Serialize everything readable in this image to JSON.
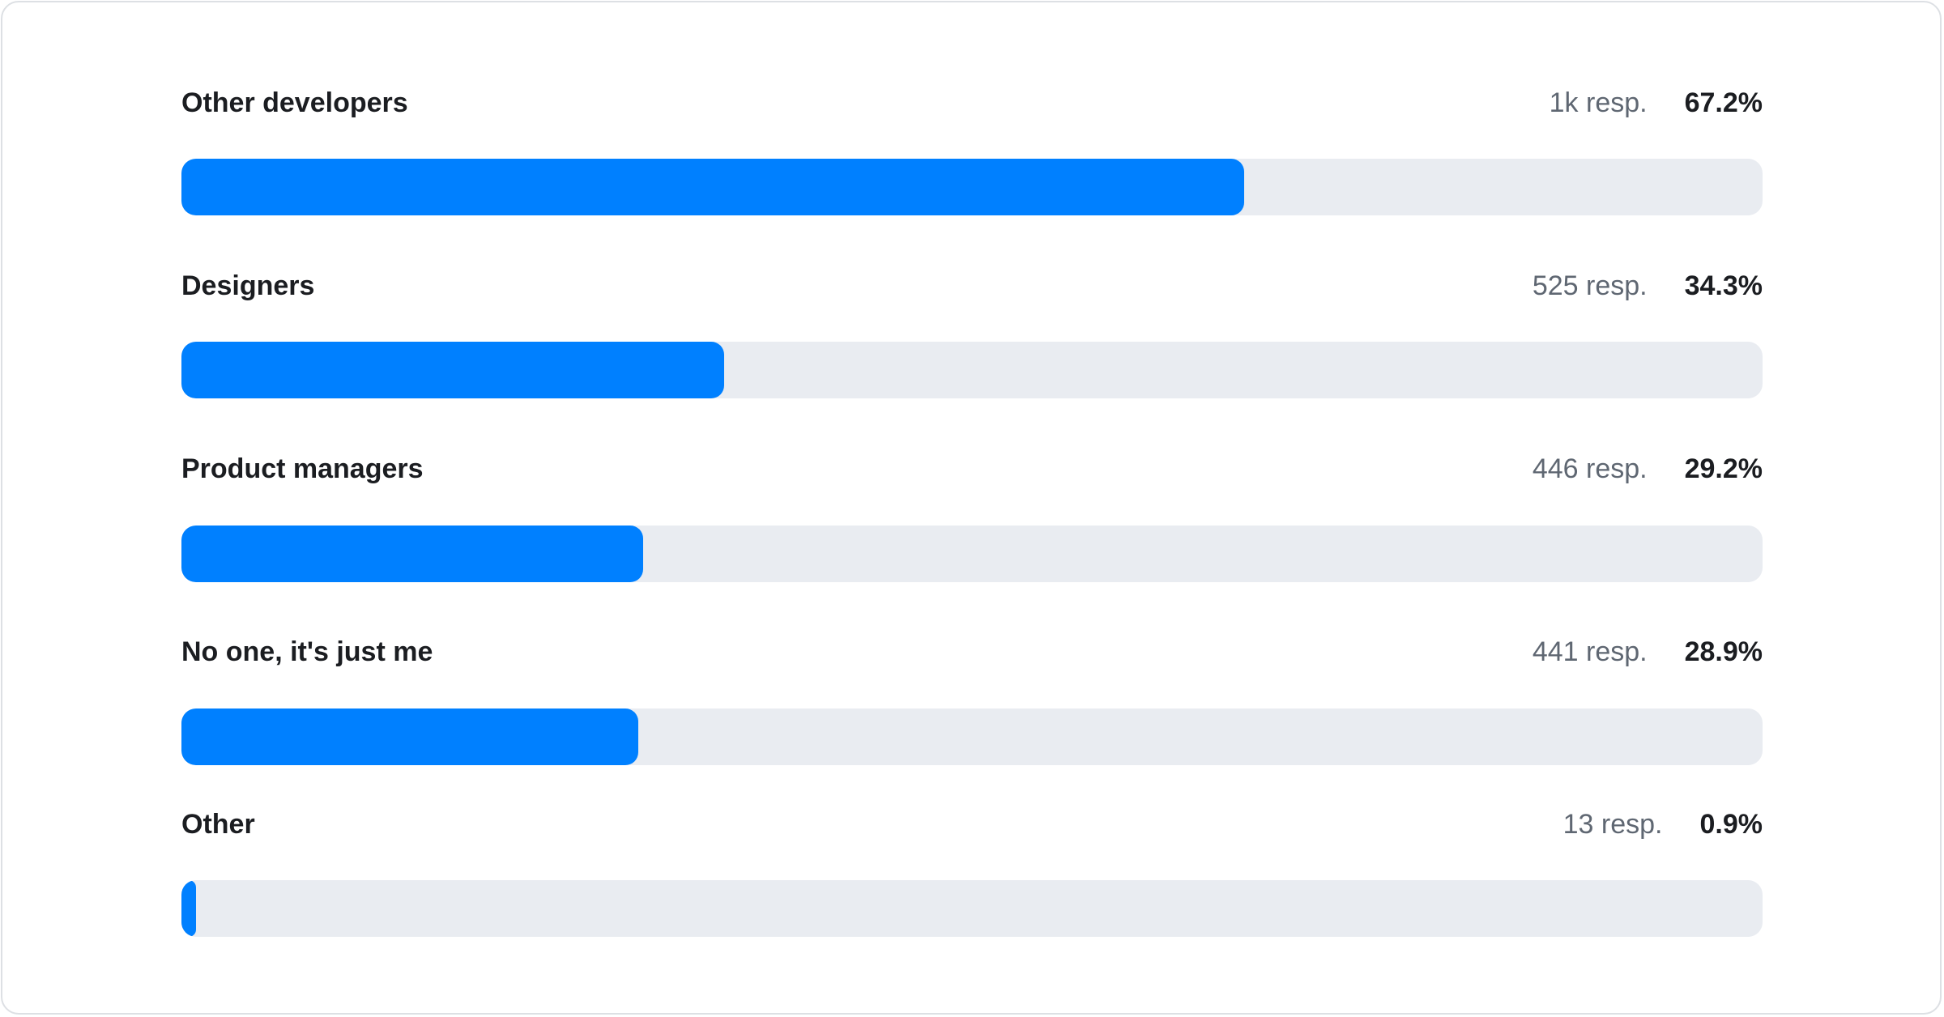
{
  "colors": {
    "fill": "#0080ff",
    "track": "#e9ecf1"
  },
  "rows": [
    {
      "label": "Other developers",
      "responses": "1k resp.",
      "percent": "67.2%",
      "value": 67.2
    },
    {
      "label": "Designers",
      "responses": "525 resp.",
      "percent": "34.3%",
      "value": 34.3
    },
    {
      "label": "Product managers",
      "responses": "446 resp.",
      "percent": "29.2%",
      "value": 29.2
    },
    {
      "label": "No one, it's just me",
      "responses": "441 resp.",
      "percent": "28.9%",
      "value": 28.9
    },
    {
      "label": "Other",
      "responses": "13 resp.",
      "percent": "0.9%",
      "value": 0.9
    }
  ]
}
